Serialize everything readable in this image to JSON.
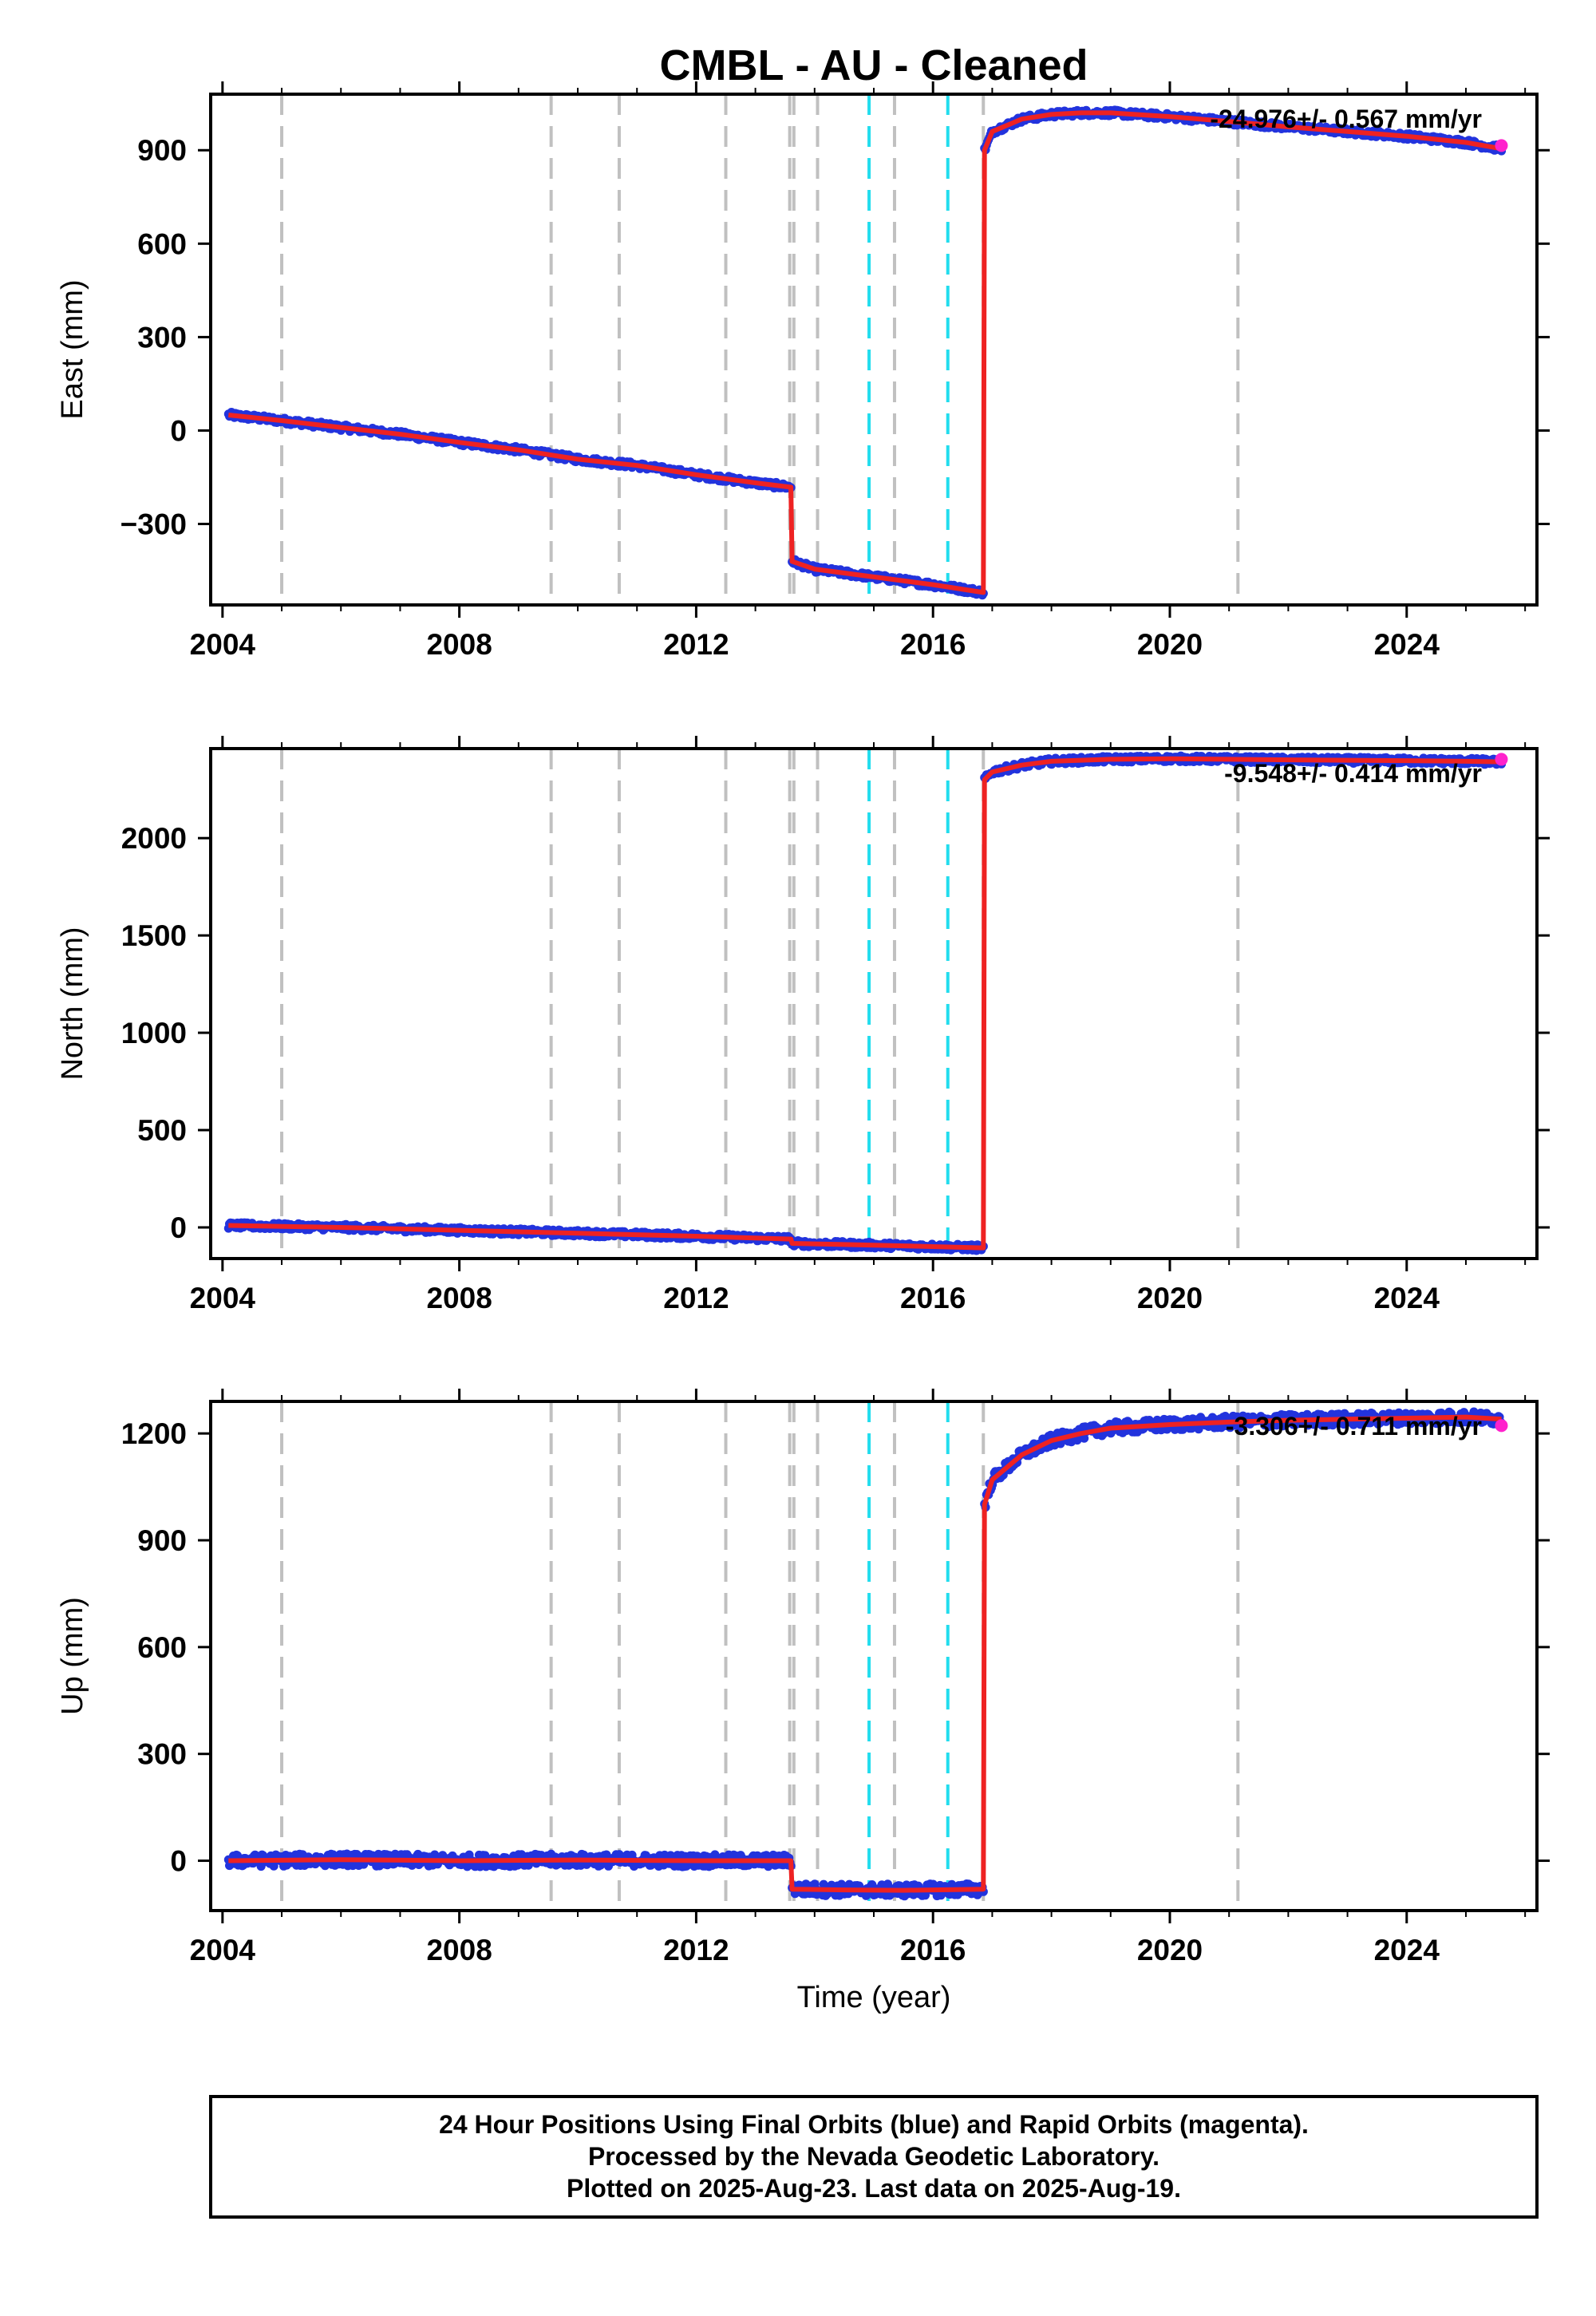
{
  "chart_data": {
    "type": "line",
    "title": "CMBL  - AU - Cleaned",
    "xlabel": "Time (year)",
    "xlim": [
      2003.8,
      2026.2
    ],
    "xticks": [
      2004,
      2008,
      2012,
      2016,
      2020,
      2024
    ],
    "grid": false,
    "events": {
      "gray_dashed": [
        2005.0,
        2009.55,
        2010.7,
        2012.5,
        2013.58,
        2013.65,
        2014.05,
        2015.35,
        2016.85,
        2021.15
      ],
      "cyan_dashed": [
        2014.92,
        2016.25
      ]
    },
    "panels": [
      {
        "ylabel": "East (mm)",
        "ylim": [
          -560,
          1080
        ],
        "yticks": [
          -300,
          0,
          300,
          600,
          900
        ],
        "rate_label": "-24.976+/- 0.567 mm/yr",
        "series": [
          {
            "x": [
              2004.1,
              2005.0,
              2006.0,
              2007.0,
              2008.0,
              2009.0,
              2010.0,
              2011.0,
              2012.0,
              2013.0,
              2013.6
            ],
            "values": [
              50,
              32,
              10,
              -12,
              -38,
              -62,
              -92,
              -112,
              -142,
              -168,
              -182
            ]
          },
          {
            "x": [
              2013.62,
              2014.0,
              2015.0,
              2016.0,
              2016.85
            ],
            "values": [
              -420,
              -445,
              -470,
              -495,
              -520
            ]
          },
          {
            "x": [
              2016.87,
              2017.0,
              2017.5,
              2018.0,
              2018.5,
              2019.0,
              2020.0,
              2021.0,
              2022.0,
              2023.0,
              2024.0,
              2025.0,
              2025.6
            ],
            "values": [
              900,
              960,
              1000,
              1015,
              1020,
              1020,
              1008,
              992,
              975,
              960,
              945,
              925,
              905
            ]
          }
        ],
        "last_point": {
          "x": 2025.6,
          "y": 915
        }
      },
      {
        "ylabel": "North (mm)",
        "ylim": [
          -160,
          2460
        ],
        "yticks": [
          0,
          500,
          1000,
          1500,
          2000
        ],
        "rate_label": "-9.548+/- 0.414 mm/yr",
        "series": [
          {
            "x": [
              2004.1,
              2006.0,
              2008.0,
              2010.0,
              2012.0,
              2013.6
            ],
            "values": [
              10,
              0,
              -15,
              -30,
              -45,
              -60
            ]
          },
          {
            "x": [
              2013.62,
              2014.5,
              2015.5,
              2016.85
            ],
            "values": [
              -82,
              -88,
              -95,
              -105
            ]
          },
          {
            "x": [
              2016.87,
              2017.0,
              2017.5,
              2018.0,
              2019.0,
              2020.0,
              2021.0,
              2022.0,
              2023.0,
              2024.0,
              2025.0,
              2025.6
            ],
            "values": [
              2300,
              2340,
              2375,
              2395,
              2405,
              2408,
              2405,
              2402,
              2400,
              2398,
              2395,
              2392
            ]
          }
        ],
        "last_point": {
          "x": 2025.6,
          "y": 2405
        }
      },
      {
        "ylabel": "Up (mm)",
        "ylim": [
          -140,
          1290
        ],
        "yticks": [
          0,
          300,
          600,
          900,
          1200
        ],
        "rate_label": "-3.306+/- 0.711 mm/yr",
        "series": [
          {
            "x": [
              2004.1,
              2006.0,
              2008.0,
              2010.0,
              2012.0,
              2013.6
            ],
            "values": [
              0,
              3,
              0,
              2,
              0,
              0
            ]
          },
          {
            "x": [
              2013.62,
              2014.5,
              2015.5,
              2016.85
            ],
            "values": [
              -80,
              -82,
              -83,
              -80
            ]
          },
          {
            "x": [
              2016.87,
              2017.0,
              2017.5,
              2018.0,
              2018.5,
              2019.0,
              2020.0,
              2021.0,
              2022.0,
              2023.0,
              2024.0,
              2025.0,
              2025.6
            ],
            "values": [
              1000,
              1070,
              1140,
              1180,
              1200,
              1215,
              1225,
              1232,
              1237,
              1240,
              1243,
              1246,
              1240
            ]
          }
        ],
        "last_point": {
          "x": 2025.6,
          "y": 1222
        }
      }
    ]
  },
  "footer": {
    "line1": "24 Hour Positions Using Final Orbits (blue) and Rapid Orbits (magenta).",
    "line2": "Processed by the Nevada Geodetic Laboratory.",
    "line3": "Plotted on 2025-Aug-23. Last data on 2025-Aug-19."
  },
  "colors": {
    "final_orbits": "#2233dd",
    "rapid_orbits": "#ff22cc",
    "model": "#ee2222",
    "gray_event": "#c0c0c0",
    "cyan_event": "#22ddee",
    "frame": "#000000"
  }
}
